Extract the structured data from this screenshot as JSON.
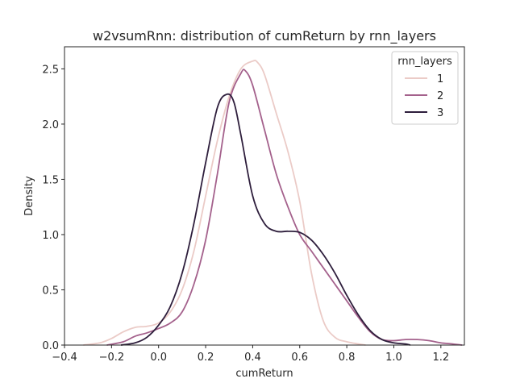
{
  "chart_data": {
    "type": "line",
    "title": "w2vsumRnn: distribution of cumReturn by rnn_layers",
    "xlabel": "cumReturn",
    "ylabel": "Density",
    "xlim": [
      -0.4,
      1.3
    ],
    "ylim": [
      0.0,
      2.7
    ],
    "xticks": [
      -0.4,
      -0.2,
      0.0,
      0.2,
      0.4,
      0.6,
      0.8,
      1.0,
      1.2
    ],
    "xtick_labels": [
      "−0.4",
      "−0.2",
      "0.0",
      "0.2",
      "0.4",
      "0.6",
      "0.8",
      "1.0",
      "1.2"
    ],
    "yticks": [
      0.0,
      0.5,
      1.0,
      1.5,
      2.0,
      2.5
    ],
    "ytick_labels": [
      "0.0",
      "0.5",
      "1.0",
      "1.5",
      "2.0",
      "2.5"
    ],
    "grid": false,
    "legend": {
      "title": "rnn_layers",
      "placement": "top-right"
    },
    "series": [
      {
        "name": "1",
        "color": "#ebcbc7",
        "x": [
          -0.32,
          -0.25,
          -0.2,
          -0.15,
          -0.1,
          -0.05,
          0.0,
          0.05,
          0.1,
          0.15,
          0.2,
          0.25,
          0.3,
          0.35,
          0.4,
          0.42,
          0.45,
          0.5,
          0.55,
          0.6,
          0.65,
          0.7,
          0.75,
          0.8,
          0.85,
          0.88
        ],
        "y": [
          0.0,
          0.02,
          0.06,
          0.12,
          0.16,
          0.17,
          0.2,
          0.3,
          0.5,
          0.85,
          1.35,
          1.85,
          2.25,
          2.5,
          2.57,
          2.56,
          2.45,
          2.1,
          1.75,
          1.3,
          0.65,
          0.22,
          0.07,
          0.03,
          0.01,
          0.0
        ]
      },
      {
        "name": "2",
        "color": "#a4618c",
        "x": [
          -0.22,
          -0.15,
          -0.1,
          -0.05,
          0.0,
          0.05,
          0.1,
          0.15,
          0.2,
          0.25,
          0.3,
          0.35,
          0.37,
          0.4,
          0.45,
          0.5,
          0.55,
          0.6,
          0.65,
          0.7,
          0.75,
          0.8,
          0.85,
          0.9,
          0.95,
          1.0,
          1.05,
          1.1,
          1.15,
          1.2,
          1.25,
          1.29
        ],
        "y": [
          0.0,
          0.03,
          0.08,
          0.11,
          0.15,
          0.2,
          0.3,
          0.55,
          0.95,
          1.55,
          2.2,
          2.46,
          2.48,
          2.35,
          1.95,
          1.55,
          1.25,
          1.0,
          0.85,
          0.7,
          0.55,
          0.4,
          0.25,
          0.12,
          0.05,
          0.04,
          0.05,
          0.05,
          0.04,
          0.02,
          0.01,
          0.0
        ]
      },
      {
        "name": "3",
        "color": "#2e1e3c",
        "x": [
          -0.16,
          -0.1,
          -0.05,
          0.0,
          0.05,
          0.1,
          0.15,
          0.2,
          0.25,
          0.29,
          0.32,
          0.35,
          0.4,
          0.45,
          0.5,
          0.55,
          0.6,
          0.65,
          0.7,
          0.75,
          0.8,
          0.85,
          0.9,
          0.95,
          1.0,
          1.05,
          1.07
        ],
        "y": [
          0.0,
          0.02,
          0.07,
          0.18,
          0.35,
          0.65,
          1.1,
          1.65,
          2.15,
          2.27,
          2.2,
          1.9,
          1.35,
          1.1,
          1.03,
          1.03,
          1.02,
          0.95,
          0.82,
          0.65,
          0.45,
          0.27,
          0.13,
          0.05,
          0.02,
          0.01,
          0.0
        ]
      }
    ]
  }
}
